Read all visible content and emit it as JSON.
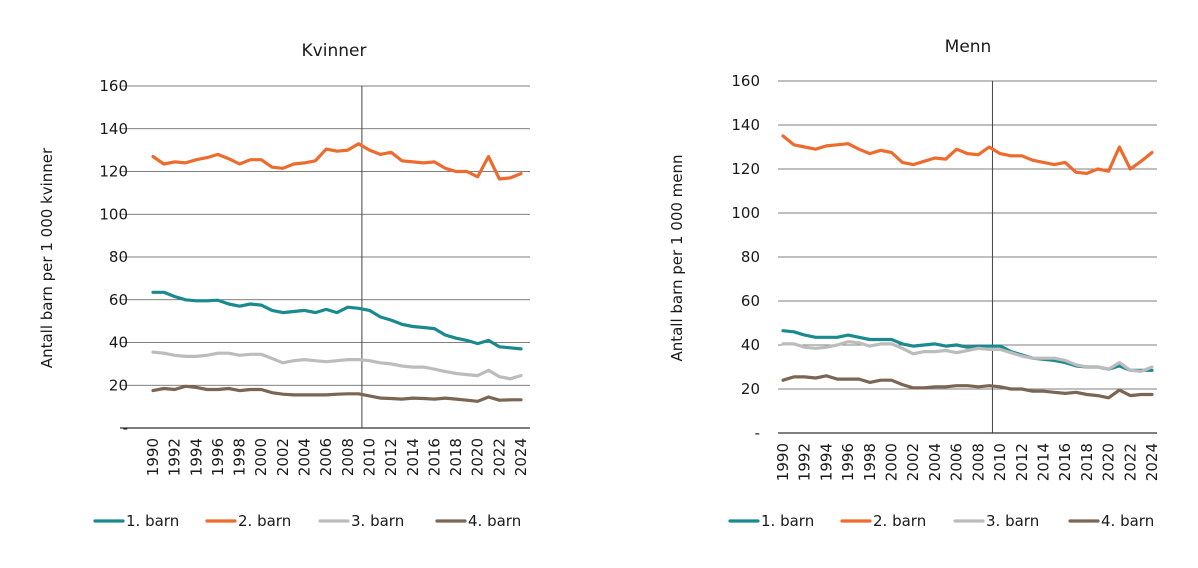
{
  "chart_data": [
    {
      "type": "line",
      "title": "Kvinner",
      "xlabel": "",
      "ylabel": "Antall barn per 1 000 kvinner",
      "ylim": [
        0,
        160
      ],
      "yticks": [
        0,
        20,
        40,
        60,
        80,
        100,
        120,
        140,
        160
      ],
      "ytick_labels": [
        "-",
        "20",
        "40",
        "60",
        "80",
        "100",
        "120",
        "140",
        "160"
      ],
      "x": [
        1990,
        1991,
        1992,
        1993,
        1994,
        1995,
        1996,
        1997,
        1998,
        1999,
        2000,
        2001,
        2002,
        2003,
        2004,
        2005,
        2006,
        2007,
        2008,
        2009,
        2010,
        2011,
        2012,
        2013,
        2014,
        2015,
        2016,
        2017,
        2018,
        2019,
        2020,
        2021,
        2022,
        2023,
        2024
      ],
      "xtick_labels": [
        "1990",
        "1992",
        "1994",
        "1996",
        "1998",
        "2000",
        "2002",
        "2004",
        "2006",
        "2008",
        "2010",
        "2012",
        "2014",
        "2016",
        "2018",
        "2020",
        "2022",
        "2024"
      ],
      "vertical_marker_x": 2009.3,
      "grid": true,
      "legend_position": "bottom",
      "series": [
        {
          "name": "1. barn",
          "color": "#1b8a8f",
          "values": [
            63.5,
            63.5,
            61.5,
            60,
            59.5,
            59.5,
            59.8,
            58,
            57,
            58,
            57.5,
            55,
            54,
            54.5,
            55,
            54,
            55.5,
            54,
            56.5,
            56,
            55,
            52,
            50.5,
            48.5,
            47.5,
            47,
            46.5,
            43.5,
            42,
            41,
            39.5,
            41,
            38,
            37.5,
            37
          ]
        },
        {
          "name": "2. barn",
          "color": "#ec6b2d",
          "values": [
            127,
            123.5,
            124.5,
            124,
            125.5,
            126.5,
            128,
            126,
            123.5,
            125.5,
            125.5,
            122,
            121.5,
            123.5,
            124,
            125,
            130.5,
            129.5,
            130,
            133,
            130,
            128,
            129,
            125,
            124.5,
            124,
            124.5,
            121.5,
            120,
            120,
            117.5,
            127,
            116.5,
            117,
            119
          ]
        },
        {
          "name": "3. barn",
          "color": "#bcbcbc",
          "values": [
            35.5,
            35,
            34,
            33.5,
            33.5,
            34,
            35,
            35,
            34,
            34.5,
            34.5,
            32.5,
            30.5,
            31.5,
            32,
            31.5,
            31,
            31.5,
            32,
            32,
            31.5,
            30.5,
            30,
            29,
            28.5,
            28.5,
            27.5,
            26.5,
            25.5,
            25,
            24.5,
            27,
            24,
            23,
            24.5
          ]
        },
        {
          "name": "4. barn",
          "color": "#7b6553",
          "values": [
            17.5,
            18.5,
            18,
            19.5,
            19,
            18,
            18,
            18.5,
            17.5,
            18,
            18,
            16.5,
            15.8,
            15.5,
            15.5,
            15.5,
            15.5,
            15.8,
            16,
            16,
            15,
            14,
            13.8,
            13.5,
            14,
            13.8,
            13.5,
            14,
            13.5,
            13,
            12.5,
            14.5,
            13,
            13.2,
            13.2
          ]
        }
      ]
    },
    {
      "type": "line",
      "title": "Menn",
      "xlabel": "",
      "ylabel": "Antall barn per 1 000 menn",
      "ylim": [
        0,
        160
      ],
      "yticks": [
        0,
        20,
        40,
        60,
        80,
        100,
        120,
        140,
        160
      ],
      "ytick_labels": [
        "-",
        "20",
        "40",
        "60",
        "80",
        "100",
        "120",
        "140",
        "160"
      ],
      "x": [
        1990,
        1991,
        1992,
        1993,
        1994,
        1995,
        1996,
        1997,
        1998,
        1999,
        2000,
        2001,
        2002,
        2003,
        2004,
        2005,
        2006,
        2007,
        2008,
        2009,
        2010,
        2011,
        2012,
        2013,
        2014,
        2015,
        2016,
        2017,
        2018,
        2019,
        2020,
        2021,
        2022,
        2023,
        2024
      ],
      "xtick_labels": [
        "1990",
        "1992",
        "1994",
        "1996",
        "1998",
        "2000",
        "2002",
        "2004",
        "2006",
        "2008",
        "2010",
        "2012",
        "2014",
        "2016",
        "2018",
        "2020",
        "2022",
        "2024"
      ],
      "vertical_marker_x": 2009.3,
      "grid": true,
      "legend_position": "bottom",
      "series": [
        {
          "name": "1. barn",
          "color": "#1b8a8f",
          "values": [
            46.5,
            46,
            44.5,
            43.5,
            43.5,
            43.5,
            44.5,
            43.5,
            42.5,
            42.5,
            42.5,
            40.5,
            39.5,
            40,
            40.5,
            39.5,
            40,
            39,
            39.5,
            39.5,
            39.5,
            37,
            35.5,
            34,
            33.5,
            33,
            32,
            30.5,
            30,
            30,
            29,
            30.5,
            28.5,
            28.5,
            28.5
          ]
        },
        {
          "name": "2. barn",
          "color": "#ec6b2d",
          "values": [
            135,
            131,
            130,
            129,
            130.5,
            131,
            131.5,
            129,
            127,
            128.5,
            127.5,
            123,
            122,
            123.5,
            125,
            124.5,
            129,
            127,
            126.5,
            130,
            127,
            126,
            126,
            124,
            123,
            122,
            123,
            118.5,
            118,
            120,
            119,
            130,
            120,
            123.5,
            127.5
          ]
        },
        {
          "name": "3. barn",
          "color": "#bcbcbc",
          "values": [
            40.5,
            40.5,
            39,
            38.5,
            39,
            40,
            41.5,
            41,
            39.5,
            40.5,
            40.5,
            38.5,
            36,
            37,
            37,
            37.5,
            36.5,
            37.5,
            38.5,
            38,
            38,
            36.5,
            35,
            34,
            34,
            34,
            33,
            31,
            30,
            30,
            29,
            32,
            28.5,
            28,
            30
          ]
        },
        {
          "name": "4. barn",
          "color": "#7b6553",
          "values": [
            24,
            25.5,
            25.5,
            25,
            26,
            24.5,
            24.5,
            24.5,
            23,
            24,
            24,
            22,
            20.5,
            20.5,
            21,
            21,
            21.5,
            21.5,
            21,
            21.5,
            21,
            20,
            20,
            19,
            19,
            18.5,
            18,
            18.5,
            17.5,
            17,
            16,
            19.5,
            17,
            17.5,
            17.5
          ]
        }
      ]
    }
  ]
}
